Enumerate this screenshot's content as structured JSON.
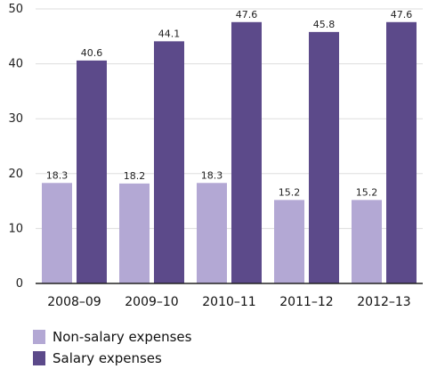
{
  "chart_data": {
    "type": "bar",
    "categories": [
      "2008–09",
      "2009–10",
      "2010–11",
      "2011–12",
      "2012–13"
    ],
    "series": [
      {
        "name": "Non-salary expenses",
        "values": [
          18.3,
          18.2,
          18.3,
          15.2,
          15.2
        ],
        "color": "#b3a8d4"
      },
      {
        "name": "Salary expenses",
        "values": [
          40.6,
          44.1,
          47.6,
          45.8,
          47.6
        ],
        "color": "#5c4a8a"
      }
    ],
    "data_labels": [
      [
        "18.3",
        "18.2",
        "18.3",
        "15.2",
        "15.2"
      ],
      [
        "40.6",
        "44.1",
        "47.6",
        "45.8",
        "47.6"
      ]
    ],
    "y_ticks": [
      "0",
      "10",
      "20",
      "30",
      "40",
      "50"
    ],
    "ylim": [
      0,
      50
    ],
    "grid": true,
    "legend_position": "bottom-left",
    "title": "",
    "xlabel": "",
    "ylabel": ""
  }
}
